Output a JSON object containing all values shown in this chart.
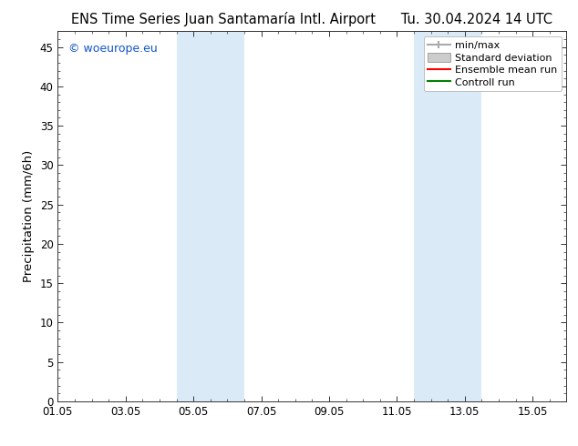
{
  "title_left": "ENS Time Series Juan Santamaría Intl. Airport",
  "title_right": "Tu. 30.04.2024 14 UTC",
  "ylabel": "Precipitation (mm/6h)",
  "watermark": "© woeurope.eu",
  "xtick_labels": [
    "01.05",
    "03.05",
    "05.05",
    "07.05",
    "09.05",
    "11.05",
    "13.05",
    "15.05"
  ],
  "xtick_positions": [
    0,
    2,
    4,
    6,
    8,
    10,
    12,
    14
  ],
  "ylim": [
    0,
    47
  ],
  "xlim": [
    0,
    15
  ],
  "ytick_positions": [
    0,
    5,
    10,
    15,
    20,
    25,
    30,
    35,
    40,
    45
  ],
  "ytick_labels": [
    "0",
    "5",
    "10",
    "15",
    "20",
    "25",
    "30",
    "35",
    "40",
    "45"
  ],
  "shaded_bands": [
    {
      "x_start": 3.5,
      "x_end": 4.5,
      "color": "#daeaf7"
    },
    {
      "x_start": 4.5,
      "x_end": 5.5,
      "color": "#daeaf7"
    },
    {
      "x_start": 10.5,
      "x_end": 11.5,
      "color": "#daeaf7"
    },
    {
      "x_start": 11.5,
      "x_end": 12.5,
      "color": "#daeaf7"
    }
  ],
  "background_color": "#ffffff",
  "plot_bg_color": "#ffffff",
  "title_fontsize": 10.5,
  "tick_fontsize": 8.5,
  "ylabel_fontsize": 9.5,
  "watermark_color": "#1155cc",
  "watermark_fontsize": 9,
  "legend_fontsize": 8,
  "legend_items": [
    {
      "label": "min/max",
      "type": "hline_capped",
      "color": "#aaaaaa"
    },
    {
      "label": "Standard deviation",
      "type": "rect",
      "color": "#cccccc"
    },
    {
      "label": "Ensemble mean run",
      "type": "line",
      "color": "#ff0000"
    },
    {
      "label": "Controll run",
      "type": "line",
      "color": "#008000"
    }
  ]
}
